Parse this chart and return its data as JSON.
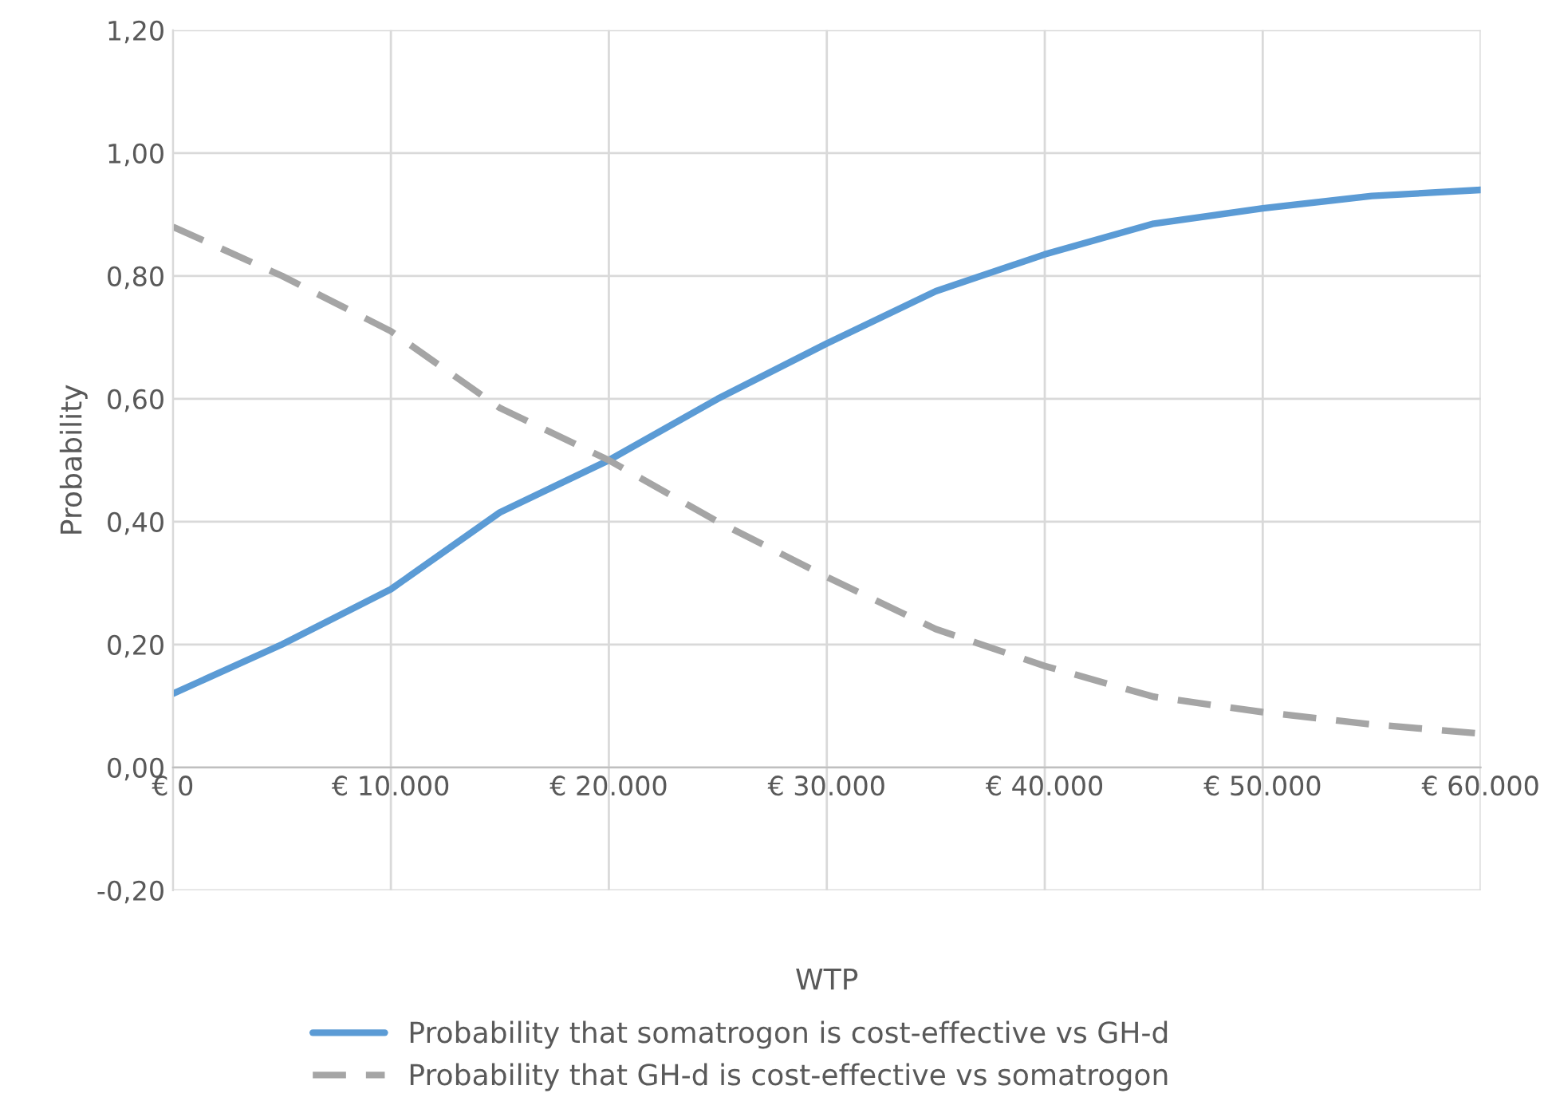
{
  "chart_data": {
    "type": "line",
    "xlabel": "WTP",
    "ylabel": "Probability",
    "x": [
      0,
      5000,
      10000,
      15000,
      20000,
      25000,
      30000,
      35000,
      40000,
      45000,
      50000,
      55000,
      60000
    ],
    "series": [
      {
        "name": "Probability that somatrogon is cost-effective vs GH-d",
        "color": "#5b9bd5",
        "line_style": "solid",
        "values": [
          0.12,
          0.2,
          0.29,
          0.415,
          0.5,
          0.6,
          0.69,
          0.775,
          0.835,
          0.885,
          0.91,
          0.93,
          0.94
        ]
      },
      {
        "name": "Probability that GH-d is cost-effective vs somatrogon",
        "color": "#a5a5a5",
        "line_style": "dashed",
        "values": [
          0.88,
          0.8,
          0.71,
          0.585,
          0.5,
          0.4,
          0.31,
          0.225,
          0.165,
          0.115,
          0.09,
          0.07,
          0.055
        ]
      }
    ],
    "xlim": [
      0,
      60000
    ],
    "xticks": [
      {
        "value": 0,
        "label": "€ 0"
      },
      {
        "value": 10000,
        "label": "€ 10.000"
      },
      {
        "value": 20000,
        "label": "€ 20.000"
      },
      {
        "value": 30000,
        "label": "€ 30.000"
      },
      {
        "value": 40000,
        "label": "€ 40.000"
      },
      {
        "value": 50000,
        "label": "€ 50.000"
      },
      {
        "value": 60000,
        "label": "€ 60.000"
      }
    ],
    "ylim": [
      -0.2,
      1.2
    ],
    "yticks": [
      {
        "value": -0.2,
        "label": "-0,20"
      },
      {
        "value": 0,
        "label": "0,00"
      },
      {
        "value": 0.2,
        "label": "0,20"
      },
      {
        "value": 0.4,
        "label": "0,40"
      },
      {
        "value": 0.6,
        "label": "0,60"
      },
      {
        "value": 0.8,
        "label": "0,80"
      },
      {
        "value": 1.0,
        "label": "1,00"
      },
      {
        "value": 1.2,
        "label": "1,20"
      }
    ],
    "grid": true,
    "legend": "bottom"
  }
}
